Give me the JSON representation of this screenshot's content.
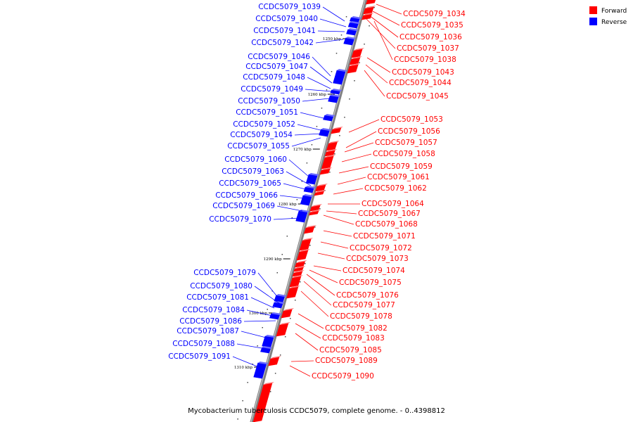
{
  "caption": "Mycobacterium tuberculosis CCDC5079, complete genome. - 0..4398812",
  "legend": [
    {
      "label": "Forward",
      "color": "#ff0000"
    },
    {
      "label": "Reverse",
      "color": "#0000ff"
    }
  ],
  "colors": {
    "forward": "#ff0000",
    "reverse": "#0000ff",
    "backbone": "#808080"
  },
  "ticks": [
    "1250 kbp",
    "1260 kbp",
    "1270 kbp",
    "1280 kbp",
    "1290 kbp",
    "1300 kbp",
    "1310 kbp"
  ],
  "reverse_genes": [
    "CCDC5079_1039",
    "CCDC5079_1040",
    "CCDC5079_1041",
    "CCDC5079_1042",
    "CCDC5079_1046",
    "CCDC5079_1047",
    "CCDC5079_1048",
    "CCDC5079_1049",
    "CCDC5079_1050",
    "CCDC5079_1051",
    "CCDC5079_1052",
    "CCDC5079_1054",
    "CCDC5079_1055",
    "CCDC5079_1060",
    "CCDC5079_1063",
    "CCDC5079_1065",
    "CCDC5079_1066",
    "CCDC5079_1069",
    "CCDC5079_1070",
    "CCDC5079_1079",
    "CCDC5079_1080",
    "CCDC5079_1081",
    "CCDC5079_1084",
    "CCDC5079_1086",
    "CCDC5079_1087",
    "CCDC5079_1088",
    "CCDC5079_1091"
  ],
  "forward_genes": [
    "CCDC5079_1034",
    "CCDC5079_1035",
    "CCDC5079_1036",
    "CCDC5079_1037",
    "CCDC5079_1038",
    "CCDC5079_1043",
    "CCDC5079_1044",
    "CCDC5079_1045",
    "CCDC5079_1053",
    "CCDC5079_1056",
    "CCDC5079_1057",
    "CCDC5079_1058",
    "CCDC5079_1059",
    "CCDC5079_1061",
    "CCDC5079_1062",
    "CCDC5079_1064",
    "CCDC5079_1067",
    "CCDC5079_1068",
    "CCDC5079_1071",
    "CCDC5079_1072",
    "CCDC5079_1073",
    "CCDC5079_1074",
    "CCDC5079_1075",
    "CCDC5079_1076",
    "CCDC5079_1077",
    "CCDC5079_1078",
    "CCDC5079_1082",
    "CCDC5079_1083",
    "CCDC5079_1085",
    "CCDC5079_1089",
    "CCDC5079_1090"
  ]
}
